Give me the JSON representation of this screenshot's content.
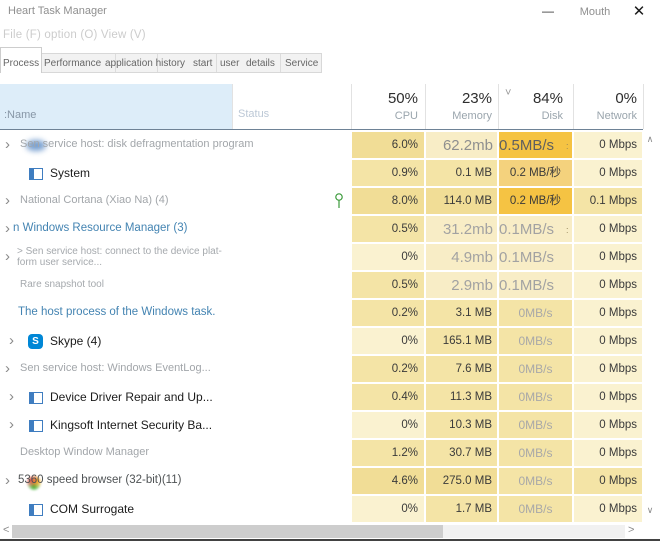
{
  "window": {
    "title": "Heart Task Manager",
    "minimize_glyph": "—",
    "maximize_label": "Mouth",
    "close_glyph": "✕"
  },
  "menu_bar": {
    "text": "File (F) option (O) View (V)"
  },
  "tabs": [
    {
      "label": "Process",
      "active": true
    },
    {
      "label": "Performance",
      "active": false
    },
    {
      "label": "application history",
      "active": false
    },
    {
      "label": "start",
      "active": false
    },
    {
      "label": "user",
      "active": false
    },
    {
      "label": "details",
      "active": false
    },
    {
      "label": "Service",
      "active": false
    }
  ],
  "table": {
    "name_header": ":Name",
    "status_header": "Status",
    "disk_caret": "˅",
    "columns": [
      {
        "percent": "50%",
        "label": "CPU"
      },
      {
        "percent": "23%",
        "label": "Memory"
      },
      {
        "percent": "84%",
        "label": "Disk"
      },
      {
        "percent": "0%",
        "label": "Network"
      }
    ],
    "rows": [
      {
        "name": "Sen service host: disk defragmentation program",
        "style": "gray",
        "chevron": true,
        "icon": "blur",
        "indent": 20,
        "cpu": "6.0%",
        "memory_big": "62.2mb",
        "disk_big": "0.5MB/s",
        "network": "0 Mbps",
        "artifact": ":",
        "bg": {
          "cpu": "mid_dark",
          "mem": "cream",
          "disk": "orange",
          "net": "light"
        }
      },
      {
        "name": "System",
        "style": "black",
        "chevron": false,
        "icon": "window",
        "indent": 50,
        "cpu": "0.9%",
        "memory": "0.1 MB",
        "disk": "0.2 MB/秒",
        "network": "0 Mbps",
        "bg": {
          "cpu": "mid",
          "mem": "mid",
          "disk": "orange_mid",
          "net": "light"
        }
      },
      {
        "name": "National Cortana (Xiao Na) (4)",
        "style": "gray",
        "chevron": true,
        "icon": "plant",
        "indent": 20,
        "cpu": "8.0%",
        "memory": "114.0 MB",
        "disk": "0.2 MB/秒",
        "network": "0.1 Mbps",
        "bg": {
          "cpu": "mid_dark",
          "mem": "mid_dark",
          "disk": "orange",
          "net": "mid"
        }
      },
      {
        "name": "n Windows Resource Manager (3)",
        "style": "link",
        "chevron": true,
        "indent": 13,
        "cpu": "0.5%",
        "memory_big": "31.2mb",
        "disk_big": "0.1MB/s",
        "network": "0 Mbps",
        "artifact": ":",
        "bg": {
          "cpu": "mid",
          "mem": "cream",
          "disk": "cream",
          "net": "light"
        }
      },
      {
        "name": "> Sen service host: connect to the device plat-",
        "name_line2": "form user service...",
        "style": "gray-small",
        "chevron": true,
        "indent": 17,
        "cpu": "0%",
        "memory_big": "4.9mb",
        "disk_big": "0.1MB/s",
        "network": "0 Mbps",
        "bg": {
          "cpu": "light",
          "mem": "cream",
          "disk": "cream",
          "net": "light"
        }
      },
      {
        "name": "Rare snapshot tool",
        "style": "gray-small",
        "chevron": false,
        "indent": 20,
        "cpu": "0.5%",
        "memory_big": "2.9mb",
        "disk_big": "0.1MB/s",
        "network": "0 Mbps",
        "bg": {
          "cpu": "mid",
          "mem": "cream",
          "disk": "cream",
          "net": "light"
        }
      },
      {
        "name": "The host process of the Windows task.",
        "style": "link",
        "chevron": false,
        "indent": 18,
        "cpu": "0.2%",
        "memory": "3.1 MB",
        "disk": "0MB/s",
        "disk_gray": true,
        "network": "0 Mbps",
        "bg": {
          "cpu": "mid",
          "mem": "mid",
          "disk": "mid",
          "net": "light"
        }
      },
      {
        "name": "Skype (4)",
        "style": "black",
        "chevron": true,
        "icon": "skype",
        "indent": 50,
        "cpu": "0%",
        "memory": "165.1 MB",
        "disk": "0MB/s",
        "disk_gray": true,
        "network": "0 Mbps",
        "bg": {
          "cpu": "light",
          "mem": "mid",
          "disk": "mid",
          "net": "light"
        }
      },
      {
        "name": "Sen service host: Windows EventLog...",
        "style": "gray",
        "chevron": true,
        "indent": 20,
        "cpu": "0.2%",
        "memory": "7.6 MB",
        "disk": "0MB/s",
        "disk_gray": true,
        "network": "0 Mbps",
        "bg": {
          "cpu": "mid",
          "mem": "mid",
          "disk": "mid",
          "net": "light"
        }
      },
      {
        "name": "Device Driver Repair and Up...",
        "style": "black",
        "chevron": true,
        "icon": "window",
        "indent": 50,
        "cpu": "0.4%",
        "memory": "11.3 MB",
        "disk": "0MB/s",
        "disk_gray": true,
        "network": "0 Mbps",
        "bg": {
          "cpu": "mid",
          "mem": "mid",
          "disk": "mid",
          "net": "light"
        }
      },
      {
        "name": "Kingsoft Internet Security Ba...",
        "style": "black",
        "chevron": true,
        "icon": "window",
        "indent": 50,
        "cpu": "0%",
        "memory": "10.3 MB",
        "disk": "0MB/s",
        "disk_gray": true,
        "network": "0 Mbps",
        "bg": {
          "cpu": "light",
          "mem": "mid",
          "disk": "mid",
          "net": "light"
        }
      },
      {
        "name": "Desktop Window Manager",
        "style": "gray",
        "chevron": false,
        "indent": 20,
        "cpu": "1.2%",
        "memory": "30.7 MB",
        "disk": "0MB/s",
        "disk_gray": true,
        "network": "0 Mbps",
        "bg": {
          "cpu": "mid",
          "mem": "mid",
          "disk": "mid",
          "net": "light"
        }
      },
      {
        "name": "5360 speed browser (32-bit)(11)",
        "style": "darkgray",
        "chevron": true,
        "icon": "blob",
        "indent": 18,
        "cpu": "4.6%",
        "memory": "275.0 MB",
        "disk": "0MB/s",
        "disk_gray": true,
        "network": "0 Mbps",
        "bg": {
          "cpu": "mid_dark",
          "mem": "mid_dark",
          "disk": "mid",
          "net": "mid"
        }
      },
      {
        "name": "COM Surrogate",
        "style": "black",
        "chevron": false,
        "icon": "window",
        "indent": 50,
        "cpu": "0%",
        "memory": "1.7 MB",
        "disk": "0MB/s",
        "disk_gray": true,
        "network": "0 Mbps",
        "bg": {
          "cpu": "light",
          "mem": "mid",
          "disk": "mid",
          "net": "light"
        }
      }
    ]
  },
  "colors": {
    "light": "#faf2d0",
    "mid": "#f4e4a6",
    "mid_dark": "#f1dd96",
    "cream": "#f8edc6",
    "orange": "#f5c343",
    "orange_mid": "#f4d27d",
    "name_header_bg": "#ddedf9",
    "link_text": "#4484b2"
  },
  "scrollbars": {
    "v_up": "∧",
    "v_down": "∨",
    "h_left": "<",
    "h_right": ">"
  }
}
